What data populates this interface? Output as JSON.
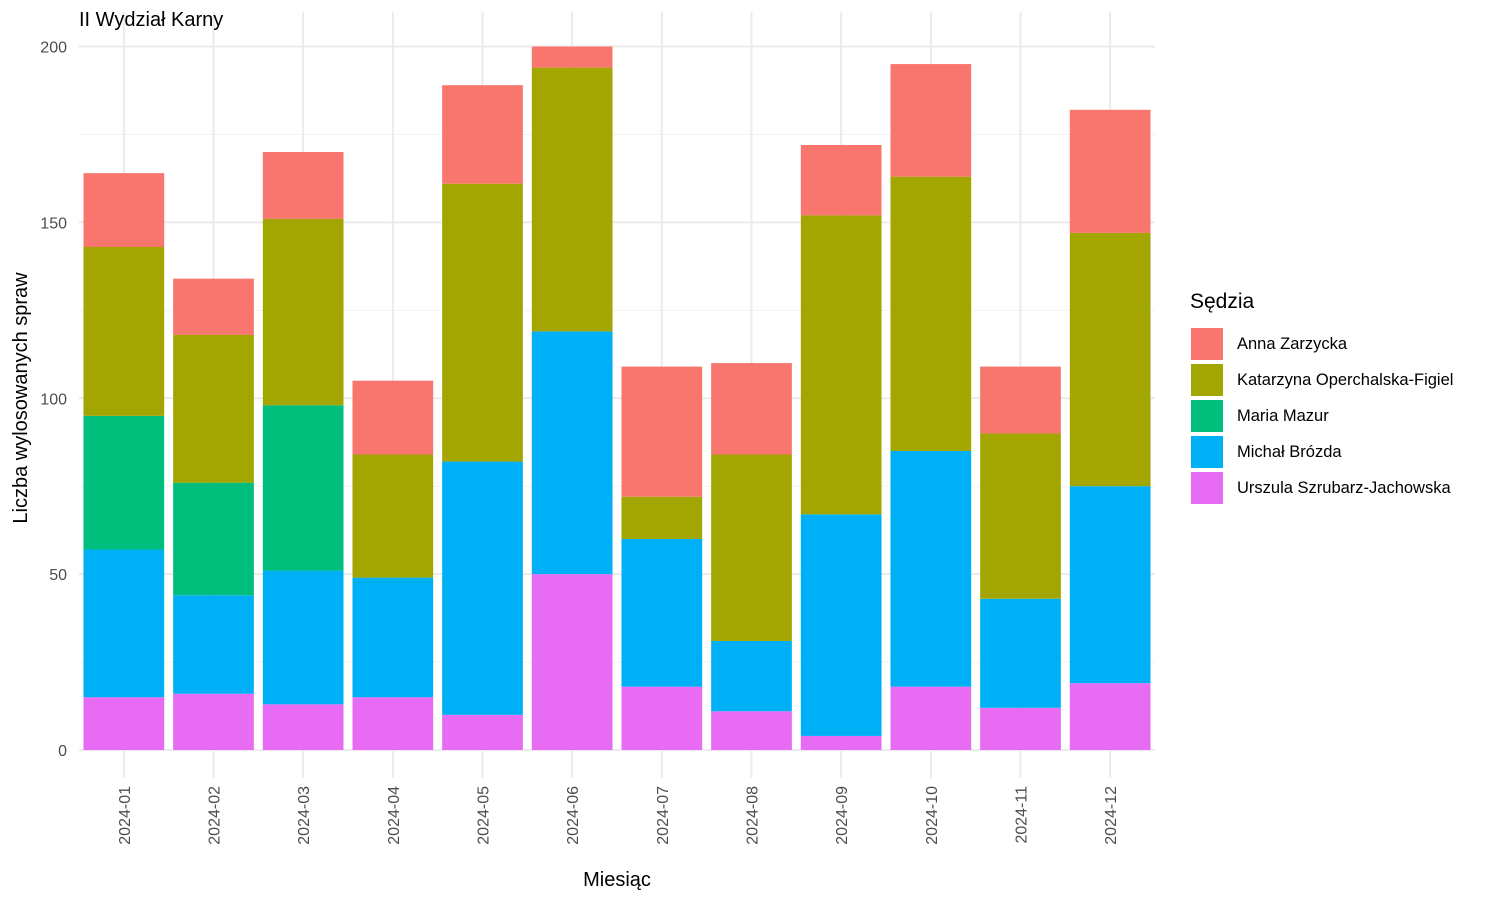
{
  "chart_data": {
    "type": "bar",
    "stacked": true,
    "title": "II Wydział Karny",
    "xlabel": "Miesiąc",
    "ylabel": "Liczba wylosowanych spraw",
    "ylim": [
      0,
      200
    ],
    "yticks": [
      0,
      50,
      100,
      150,
      200
    ],
    "grid": true,
    "legend_title": "Sędzia",
    "legend_position": "right",
    "categories": [
      "2024-01",
      "2024-02",
      "2024-03",
      "2024-04",
      "2024-05",
      "2024-06",
      "2024-07",
      "2024-08",
      "2024-09",
      "2024-10",
      "2024-11",
      "2024-12"
    ],
    "series": [
      {
        "name": "Anna Zarzycka",
        "color": "#F8766D",
        "values": [
          21,
          16,
          19,
          21,
          28,
          6,
          37,
          26,
          20,
          32,
          19,
          35
        ]
      },
      {
        "name": "Katarzyna Operchalska-Figiel",
        "color": "#A3A500",
        "values": [
          48,
          42,
          53,
          35,
          79,
          75,
          12,
          53,
          85,
          78,
          47,
          72
        ]
      },
      {
        "name": "Maria Mazur",
        "color": "#00BF7D",
        "values": [
          38,
          32,
          47,
          0,
          0,
          0,
          0,
          0,
          0,
          0,
          0,
          0
        ]
      },
      {
        "name": "Michał Brózda",
        "color": "#00B0F6",
        "values": [
          42,
          28,
          38,
          34,
          72,
          69,
          42,
          20,
          63,
          67,
          31,
          56
        ]
      },
      {
        "name": "Urszula Szrubarz-Jachowska",
        "color": "#E76BF3",
        "values": [
          15,
          16,
          13,
          15,
          10,
          50,
          18,
          11,
          4,
          18,
          12,
          19
        ]
      }
    ]
  }
}
